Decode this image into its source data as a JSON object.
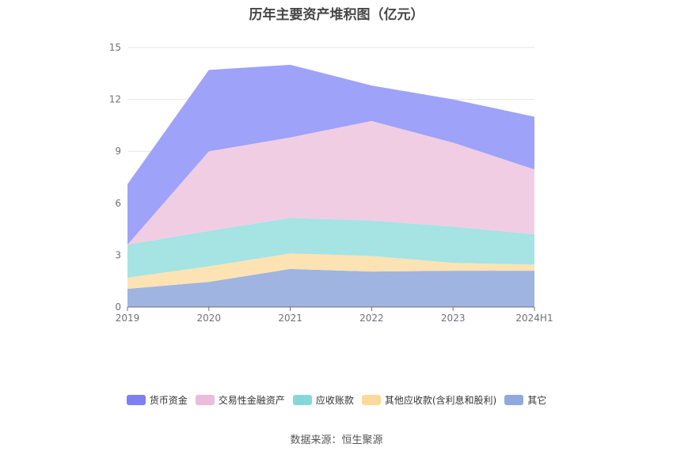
{
  "title": "历年主要资产堆积图（亿元）",
  "source": "数据来源：恒生聚源",
  "chart_data": {
    "type": "area",
    "stacked": true,
    "categories": [
      "2019",
      "2020",
      "2021",
      "2022",
      "2023",
      "2024H1"
    ],
    "ylim": [
      0,
      15
    ],
    "yticks": [
      0,
      3,
      6,
      9,
      12,
      15
    ],
    "grid": true,
    "legend_position": "bottom",
    "series": [
      {
        "name": "其它",
        "color": "#9fb4e0",
        "values": [
          1.05,
          1.45,
          2.2,
          2.05,
          2.1,
          2.1
        ]
      },
      {
        "name": "其他应收款(含利息和股利)",
        "color": "#fde3b4",
        "values": [
          0.65,
          0.9,
          0.9,
          0.9,
          0.45,
          0.35
        ]
      },
      {
        "name": "应收账款",
        "color": "#a6e3e3",
        "values": [
          1.9,
          2.05,
          2.05,
          2.05,
          2.1,
          1.75
        ]
      },
      {
        "name": "交易性金融资产",
        "color": "#f0cde3",
        "values": [
          0.0,
          4.6,
          4.65,
          5.75,
          4.85,
          3.75
        ]
      },
      {
        "name": "货币资金",
        "color": "#9ea2f8",
        "values": [
          3.5,
          4.7,
          4.2,
          2.05,
          2.5,
          3.05
        ]
      }
    ]
  },
  "legend": [
    {
      "name": "货币资金",
      "color": "#7d7ff5"
    },
    {
      "name": "交易性金融资产",
      "color": "#ebbcdc"
    },
    {
      "name": "应收账款",
      "color": "#86d8d8"
    },
    {
      "name": "其他应收款(含利息和股利)",
      "color": "#fcd99a"
    },
    {
      "name": "其它",
      "color": "#8faadc"
    }
  ]
}
